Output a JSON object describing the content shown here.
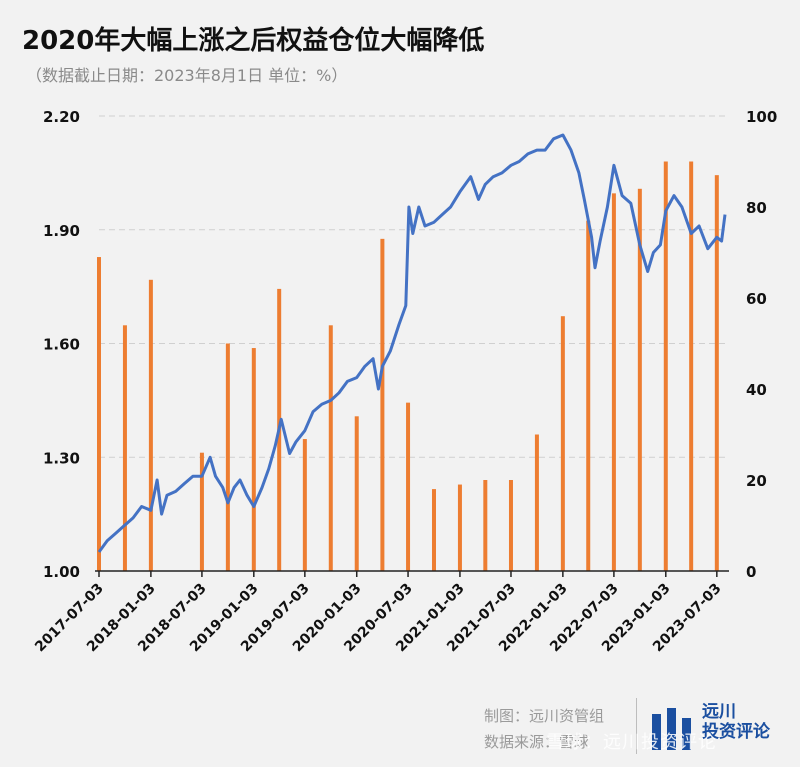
{
  "title": "2020年大幅上涨之后权益仓位大幅降低",
  "subtitle": "（数据截止日期：2023年8月1日   单位：%）",
  "footer": {
    "made_by": "制图：远川资管组",
    "source": "数据来源：雪球"
  },
  "logo": {
    "line1": "远川",
    "line2": "投资评论"
  },
  "watermark": "雪球：远川投资评论",
  "colors": {
    "line": "#4472c4",
    "bar": "#ed7d31",
    "grid": "#d0d0d0",
    "axis": "#222222"
  },
  "chart_data": {
    "type": "bar+line",
    "x_ticks": [
      "2017-07-03",
      "2018-01-03",
      "2018-07-03",
      "2019-01-03",
      "2019-07-03",
      "2020-01-03",
      "2020-07-03",
      "2021-01-03",
      "2021-07-03",
      "2022-01-03",
      "2022-07-03",
      "2023-01-03",
      "2023-07-03"
    ],
    "y_left": {
      "ticks": [
        "1.00",
        "1.30",
        "1.60",
        "1.90",
        "2.20"
      ],
      "range": [
        1.0,
        2.2
      ]
    },
    "y_right": {
      "ticks": [
        "0",
        "20",
        "40",
        "60",
        "80",
        "100"
      ],
      "range": [
        0,
        100
      ]
    },
    "bars": {
      "axis": "right",
      "points": [
        {
          "x": "2017-07-03",
          "value": 69
        },
        {
          "x": "2017-10-03",
          "value": 54
        },
        {
          "x": "2018-01-03",
          "value": 64
        },
        {
          "x": "2018-07-03",
          "value": 26
        },
        {
          "x": "2018-10-03",
          "value": 50
        },
        {
          "x": "2019-01-03",
          "value": 49
        },
        {
          "x": "2019-04-03",
          "value": 62
        },
        {
          "x": "2019-07-03",
          "value": 29
        },
        {
          "x": "2019-10-03",
          "value": 54
        },
        {
          "x": "2020-01-03",
          "value": 34
        },
        {
          "x": "2020-04-03",
          "value": 73
        },
        {
          "x": "2020-07-03",
          "value": 37
        },
        {
          "x": "2020-10-03",
          "value": 18
        },
        {
          "x": "2021-01-03",
          "value": 19
        },
        {
          "x": "2021-04-03",
          "value": 20
        },
        {
          "x": "2021-07-03",
          "value": 20
        },
        {
          "x": "2021-10-03",
          "value": 30
        },
        {
          "x": "2022-01-03",
          "value": 56
        },
        {
          "x": "2022-04-03",
          "value": 77
        },
        {
          "x": "2022-07-03",
          "value": 83
        },
        {
          "x": "2022-10-03",
          "value": 84
        },
        {
          "x": "2023-01-03",
          "value": 90
        },
        {
          "x": "2023-04-03",
          "value": 90
        },
        {
          "x": "2023-07-03",
          "value": 87
        }
      ]
    },
    "line": {
      "axis": "left",
      "points": [
        [
          "2017-07-03",
          1.05
        ],
        [
          "2017-08-01",
          1.08
        ],
        [
          "2017-09-01",
          1.1
        ],
        [
          "2017-10-01",
          1.12
        ],
        [
          "2017-11-01",
          1.14
        ],
        [
          "2017-12-01",
          1.17
        ],
        [
          "2018-01-03",
          1.16
        ],
        [
          "2018-01-25",
          1.24
        ],
        [
          "2018-02-10",
          1.15
        ],
        [
          "2018-03-01",
          1.2
        ],
        [
          "2018-04-01",
          1.21
        ],
        [
          "2018-05-01",
          1.23
        ],
        [
          "2018-06-01",
          1.25
        ],
        [
          "2018-07-03",
          1.25
        ],
        [
          "2018-08-01",
          1.3
        ],
        [
          "2018-08-20",
          1.25
        ],
        [
          "2018-09-15",
          1.22
        ],
        [
          "2018-10-03",
          1.18
        ],
        [
          "2018-10-25",
          1.22
        ],
        [
          "2018-11-15",
          1.24
        ],
        [
          "2018-12-10",
          1.2
        ],
        [
          "2019-01-03",
          1.17
        ],
        [
          "2019-02-01",
          1.22
        ],
        [
          "2019-02-25",
          1.27
        ],
        [
          "2019-03-20",
          1.33
        ],
        [
          "2019-04-10",
          1.4
        ],
        [
          "2019-05-10",
          1.31
        ],
        [
          "2019-06-01",
          1.34
        ],
        [
          "2019-07-03",
          1.37
        ],
        [
          "2019-08-01",
          1.42
        ],
        [
          "2019-09-01",
          1.44
        ],
        [
          "2019-10-03",
          1.45
        ],
        [
          "2019-11-01",
          1.47
        ],
        [
          "2019-12-01",
          1.5
        ],
        [
          "2020-01-03",
          1.51
        ],
        [
          "2020-02-01",
          1.54
        ],
        [
          "2020-03-01",
          1.56
        ],
        [
          "2020-03-20",
          1.48
        ],
        [
          "2020-04-03",
          1.54
        ],
        [
          "2020-05-01",
          1.58
        ],
        [
          "2020-06-01",
          1.65
        ],
        [
          "2020-06-25",
          1.7
        ],
        [
          "2020-07-06",
          1.96
        ],
        [
          "2020-07-20",
          1.89
        ],
        [
          "2020-08-10",
          1.96
        ],
        [
          "2020-09-01",
          1.91
        ],
        [
          "2020-10-03",
          1.92
        ],
        [
          "2020-11-01",
          1.94
        ],
        [
          "2020-12-01",
          1.96
        ],
        [
          "2021-01-03",
          2.0
        ],
        [
          "2021-02-10",
          2.04
        ],
        [
          "2021-03-10",
          1.98
        ],
        [
          "2021-04-03",
          2.02
        ],
        [
          "2021-05-01",
          2.04
        ],
        [
          "2021-06-01",
          2.05
        ],
        [
          "2021-07-03",
          2.07
        ],
        [
          "2021-08-01",
          2.08
        ],
        [
          "2021-09-01",
          2.1
        ],
        [
          "2021-10-03",
          2.11
        ],
        [
          "2021-11-01",
          2.11
        ],
        [
          "2021-12-01",
          2.14
        ],
        [
          "2022-01-03",
          2.15
        ],
        [
          "2022-02-01",
          2.11
        ],
        [
          "2022-03-01",
          2.05
        ],
        [
          "2022-03-20",
          1.98
        ],
        [
          "2022-04-15",
          1.88
        ],
        [
          "2022-04-27",
          1.8
        ],
        [
          "2022-05-15",
          1.87
        ],
        [
          "2022-06-10",
          1.96
        ],
        [
          "2022-07-03",
          2.07
        ],
        [
          "2022-08-01",
          1.99
        ],
        [
          "2022-09-01",
          1.97
        ],
        [
          "2022-10-03",
          1.86
        ],
        [
          "2022-10-31",
          1.79
        ],
        [
          "2022-11-20",
          1.84
        ],
        [
          "2022-12-15",
          1.86
        ],
        [
          "2023-01-03",
          1.95
        ],
        [
          "2023-02-01",
          1.99
        ],
        [
          "2023-03-01",
          1.96
        ],
        [
          "2023-04-03",
          1.89
        ],
        [
          "2023-05-01",
          1.91
        ],
        [
          "2023-06-01",
          1.85
        ],
        [
          "2023-07-03",
          1.88
        ],
        [
          "2023-07-20",
          1.87
        ],
        [
          "2023-08-01",
          1.94
        ]
      ]
    }
  }
}
